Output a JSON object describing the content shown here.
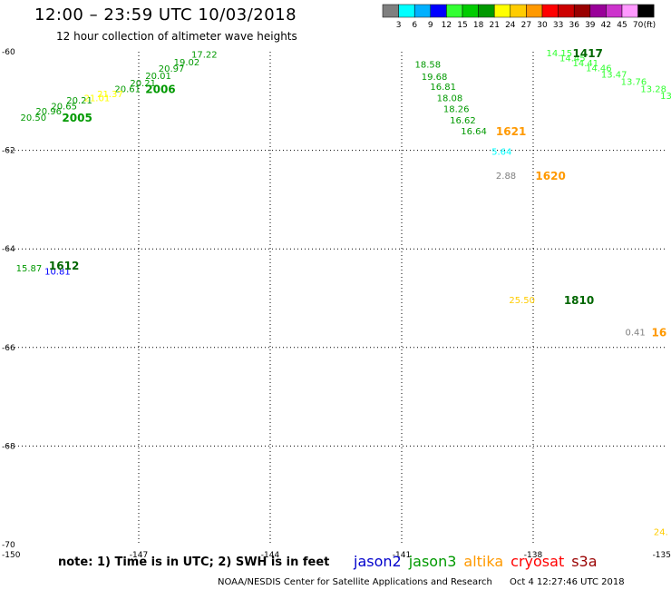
{
  "header": {
    "title": "12:00 – 23:59 UTC 10/03/2018",
    "subtitle": "12 hour collection of altimeter wave heights"
  },
  "colorbar": {
    "colors": [
      "#7f7f7f",
      "#00ffff",
      "#00b0ff",
      "#0000ff",
      "#33ff33",
      "#00cc00",
      "#009900",
      "#ffff00",
      "#ffcc00",
      "#ff9900",
      "#ff0000",
      "#cc0000",
      "#990000",
      "#990099",
      "#cc33cc",
      "#ff99ff",
      "#000000"
    ],
    "labels": [
      "3",
      "6",
      "9",
      "12",
      "15",
      "18",
      "21",
      "24",
      "27",
      "30",
      "33",
      "36",
      "39",
      "42",
      "45",
      "70"
    ],
    "unit": "(ft)"
  },
  "chart_data": {
    "type": "scatter",
    "title": "12:00 – 23:59 UTC 10/03/2018",
    "subtitle": "12 hour collection of altimeter wave heights",
    "xlim": [
      -150,
      -135
    ],
    "ylim": [
      -70,
      -60
    ],
    "xticks": [
      "-150",
      "-147",
      "-144",
      "-141",
      "-138",
      "-135"
    ],
    "yticks": [
      "-60",
      "-62",
      "-64",
      "-66",
      "-68",
      "-70"
    ],
    "x_tick_values": [
      -150,
      -147,
      -144,
      -141,
      -138,
      -135
    ],
    "y_tick_values": [
      -60,
      -62,
      -64,
      -66,
      -68,
      -70
    ],
    "grid": true,
    "series": [
      {
        "name": "jason3",
        "color": "#009900",
        "points": [
          {
            "x": -149.7,
            "y": -61.33,
            "v": "20.50"
          },
          {
            "x": -149.35,
            "y": -61.2,
            "v": "20.96"
          },
          {
            "x": -149.0,
            "y": -61.1,
            "v": "20.65"
          },
          {
            "x": -148.65,
            "y": -60.98,
            "v": "20.21"
          },
          {
            "x": -147.55,
            "y": -60.75,
            "v": "20.61"
          },
          {
            "x": -147.2,
            "y": -60.63,
            "v": "20.21"
          },
          {
            "x": -146.85,
            "y": -60.48,
            "v": "20.01"
          },
          {
            "x": -146.55,
            "y": -60.33,
            "v": "20.97"
          },
          {
            "x": -146.2,
            "y": -60.2,
            "v": "19.02"
          },
          {
            "x": -145.8,
            "y": -60.05,
            "v": "17.22"
          },
          {
            "x": -140.7,
            "y": -60.25,
            "v": "18.58"
          },
          {
            "x": -140.55,
            "y": -60.5,
            "v": "19.68"
          },
          {
            "x": -140.35,
            "y": -60.7,
            "v": "16.81"
          },
          {
            "x": -140.2,
            "y": -60.93,
            "v": "18.08"
          },
          {
            "x": -140.05,
            "y": -61.15,
            "v": "18.26"
          },
          {
            "x": -139.9,
            "y": -61.38,
            "v": "16.62"
          },
          {
            "x": -139.65,
            "y": -61.6,
            "v": "16.64"
          },
          {
            "x": -149.8,
            "y": -64.38,
            "v": "15.87"
          }
        ]
      },
      {
        "name": "jason3-light",
        "color": "#33ff33",
        "points": [
          {
            "x": -137.7,
            "y": -60.02,
            "v": "14.15"
          },
          {
            "x": -137.4,
            "y": -60.12,
            "v": "14.45"
          },
          {
            "x": -137.1,
            "y": -60.22,
            "v": "14.41"
          },
          {
            "x": -136.8,
            "y": -60.32,
            "v": "14.46"
          },
          {
            "x": -136.45,
            "y": -60.45,
            "v": "13.47"
          },
          {
            "x": -136.0,
            "y": -60.6,
            "v": "13.76"
          },
          {
            "x": -135.55,
            "y": -60.75,
            "v": "13.28"
          },
          {
            "x": -135.1,
            "y": -60.88,
            "v": "13.0"
          }
        ]
      },
      {
        "name": "yellow",
        "color": "#ffff00",
        "points": [
          {
            "x": -148.25,
            "y": -60.93,
            "v": "21.01"
          },
          {
            "x": -147.95,
            "y": -60.85,
            "v": "21.37"
          }
        ]
      },
      {
        "name": "jason2",
        "color": "#0000ff",
        "points": [
          {
            "x": -149.15,
            "y": -64.45,
            "v": "10.81"
          }
        ]
      },
      {
        "name": "altika",
        "color": "#ffcc00",
        "points": [
          {
            "x": -138.55,
            "y": -65.03,
            "v": "25.50"
          },
          {
            "x": -135.25,
            "y": -69.73,
            "v": "24."
          }
        ]
      },
      {
        "name": "cyan",
        "color": "#00ffff",
        "points": [
          {
            "x": -138.95,
            "y": -62.02,
            "v": "5.64"
          }
        ]
      },
      {
        "name": "gray",
        "color": "#7f7f7f",
        "points": [
          {
            "x": -138.85,
            "y": -62.5,
            "v": "2.88"
          },
          {
            "x": -135.9,
            "y": -65.68,
            "v": "0.41"
          }
        ]
      }
    ],
    "pass_labels": [
      {
        "text": "2005",
        "x": -148.75,
        "y": -61.33,
        "color": "#009900"
      },
      {
        "text": "2006",
        "x": -146.85,
        "y": -60.75,
        "color": "#009900"
      },
      {
        "text": "1417",
        "x": -137.1,
        "y": -60.02,
        "color": "#006600"
      },
      {
        "text": "1621",
        "x": -138.85,
        "y": -61.6,
        "color": "#ff9900"
      },
      {
        "text": "1620",
        "x": -137.95,
        "y": -62.5,
        "color": "#ff9900"
      },
      {
        "text": "1612",
        "x": -149.05,
        "y": -64.33,
        "color": "#006600"
      },
      {
        "text": "1810",
        "x": -137.3,
        "y": -65.03,
        "color": "#006600"
      },
      {
        "text": "16",
        "x": -135.3,
        "y": -65.68,
        "color": "#ff9900"
      }
    ]
  },
  "footer": {
    "note": "note: 1) Time is in UTC; 2) SWH is in feet",
    "legend": [
      {
        "label": "jason2",
        "color": "#0000cc"
      },
      {
        "label": "jason3",
        "color": "#009900"
      },
      {
        "label": "altika",
        "color": "#ff9900"
      },
      {
        "label": "cryosat",
        "color": "#ff0000"
      },
      {
        "label": "s3a",
        "color": "#990000"
      }
    ],
    "credit": "NOAA/NESDIS Center for Satellite Applications and Research",
    "timestamp": "Oct  4 12:27:46 UTC 2018"
  }
}
